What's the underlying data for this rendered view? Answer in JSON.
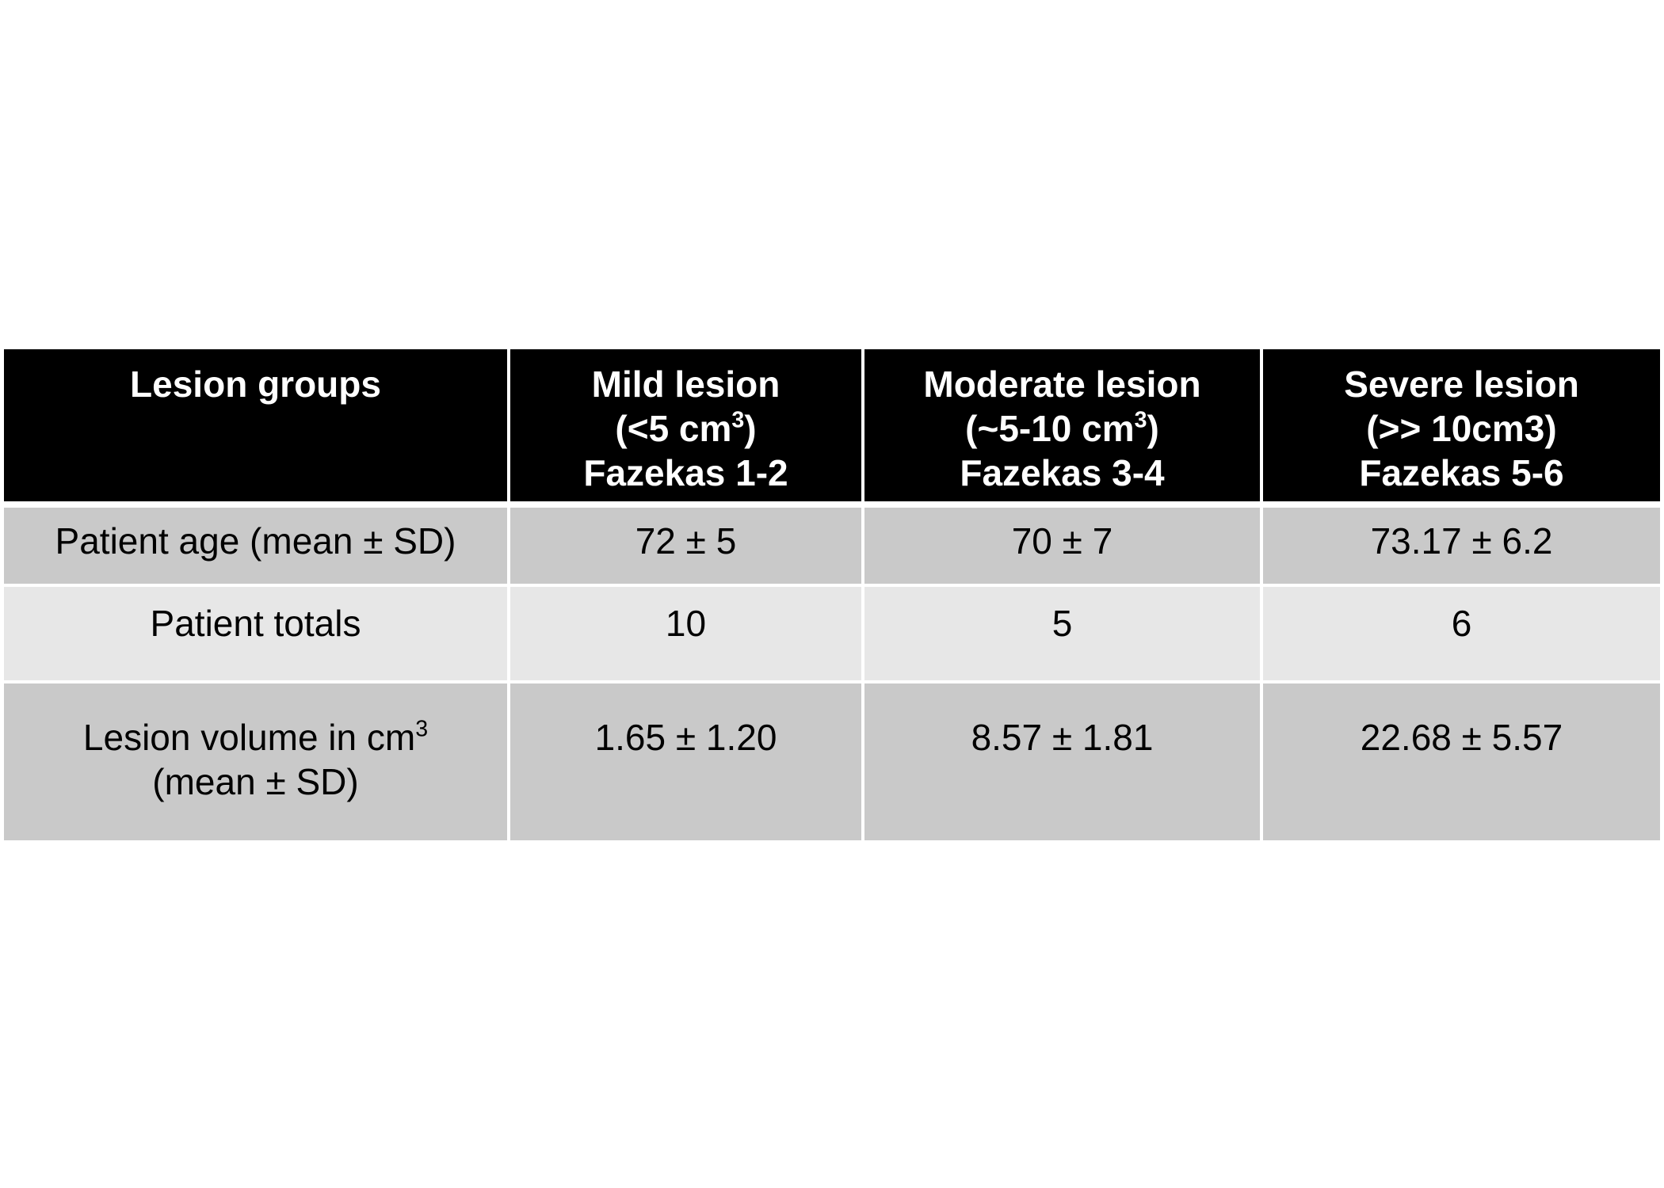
{
  "table": {
    "header": {
      "col0": {
        "line1": "Lesion groups"
      },
      "col1": {
        "line1": "Mild lesion",
        "line2_pre": "(<5 cm",
        "line2_sup": "3",
        "line2_post": ")",
        "line3": "Fazekas 1-2"
      },
      "col2": {
        "line1": "Moderate lesion",
        "line2_pre": "(~5-10 cm",
        "line2_sup": "3",
        "line2_post": ")",
        "line3": "Fazekas 3-4"
      },
      "col3": {
        "line1": "Severe lesion",
        "line2": "(>> 10cm3)",
        "line3": "Fazekas 5-6"
      }
    },
    "rows": [
      {
        "label": "Patient age (mean ± SD)",
        "mild": "72 ± 5",
        "moderate": "70 ± 7",
        "severe": "73.17 ± 6.2"
      },
      {
        "label": "Patient totals",
        "mild": "10",
        "moderate": "5",
        "severe": "6"
      },
      {
        "label_line1_pre": "Lesion volume in cm",
        "label_line1_sup": "3",
        "label_line2": "(mean ± SD)",
        "mild": "1.65 ± 1.20",
        "moderate": "8.57 ± 1.81",
        "severe": "22.68 ± 5.57"
      }
    ]
  }
}
